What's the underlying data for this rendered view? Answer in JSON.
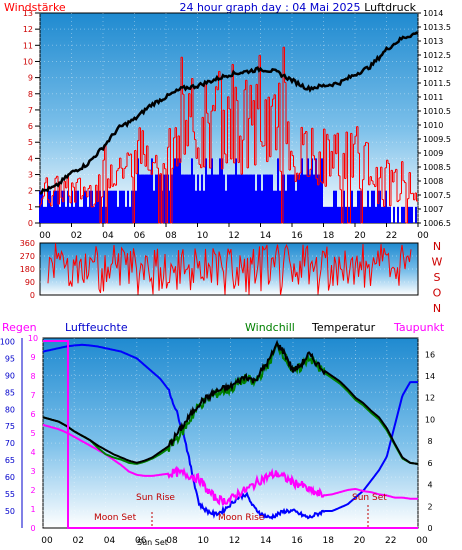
{
  "header": {
    "title": "24 hour graph day : 04 Mai 2025",
    "left_label": "Windstärke",
    "right_label": "Luftdruck"
  },
  "colors": {
    "wind": "#ff0000",
    "gust": "#0000ff",
    "pressure": "#000000",
    "direction": "#ff0000",
    "humidity": "#0000ff",
    "windchill": "#008000",
    "temperature": "#000000",
    "dewpoint": "#ff00ff",
    "rain_axis": "#0000ff",
    "astro": "#c00000"
  },
  "chart_data": [
    {
      "type": "line",
      "name": "wind-pressure",
      "x_ticks": [
        "00",
        "02",
        "04",
        "06",
        "08",
        "10",
        "12",
        "14",
        "16",
        "18",
        "20",
        "22",
        "00"
      ],
      "y_left_ticks": [
        "0",
        "1",
        "2",
        "3",
        "4",
        "5",
        "6",
        "7",
        "8",
        "9",
        "10",
        "11",
        "12",
        "13"
      ],
      "y_right_ticks": [
        "1006.5",
        "1007",
        "1007.5",
        "1008",
        "1008.5",
        "1009",
        "1009.5",
        "1010",
        "1010.5",
        "1011",
        "1011.5",
        "1012",
        "1012.5",
        "1013",
        "1013.5",
        "1014"
      ],
      "ylim_left": [
        0,
        13
      ],
      "ylim_right": [
        1006.5,
        1014
      ],
      "pressure_series": {
        "x": [
          0,
          1,
          2,
          3,
          4,
          5,
          6,
          7,
          8,
          9,
          10,
          11,
          12,
          13,
          14,
          15,
          16,
          17,
          18,
          19,
          20,
          21,
          22,
          23,
          24
        ],
        "values": [
          1007.6,
          1007.8,
          1008.3,
          1008.6,
          1009.2,
          1009.9,
          1010.2,
          1010.7,
          1011.0,
          1011.3,
          1011.4,
          1011.6,
          1011.8,
          1011.9,
          1012.0,
          1011.9,
          1011.6,
          1011.3,
          1011.4,
          1011.5,
          1011.8,
          1012.1,
          1012.7,
          1013.1,
          1013.3
        ]
      }
    },
    {
      "type": "scatter",
      "name": "wind-direction",
      "y_ticks": [
        "360",
        "270",
        "180",
        "90",
        "0"
      ],
      "direction_labels": [
        "N",
        "W",
        "S",
        "O",
        "N"
      ],
      "ylim": [
        0,
        360
      ]
    },
    {
      "type": "line",
      "name": "temperature-humidity",
      "legend": [
        "Regen",
        "Luftfeuchte",
        "Windchill",
        "Temperatur",
        "Taupunkt"
      ],
      "y_left_ticks": [
        "50",
        "55",
        "60",
        "65",
        "70",
        "75",
        "80",
        "85",
        "90",
        "95",
        "100"
      ],
      "y_right_ticks": [
        "0",
        "2",
        "4",
        "6",
        "8",
        "10",
        "12",
        "14",
        "16"
      ],
      "rain_ticks": [
        "0",
        "1",
        "2",
        "3",
        "4",
        "5",
        "6",
        "7",
        "8",
        "9",
        "10"
      ],
      "ylim_left": [
        45,
        101
      ],
      "ylim_right": [
        0,
        17.5
      ],
      "x": [
        0,
        0.5,
        1,
        1.5,
        2,
        2.5,
        3,
        3.5,
        4,
        4.5,
        5,
        5.5,
        6,
        6.5,
        7,
        7.5,
        8,
        8.5,
        9,
        9.5,
        10,
        10.5,
        11,
        11.5,
        12,
        12.5,
        13,
        13.5,
        14,
        14.5,
        15,
        15.5,
        16,
        16.5,
        17,
        17.5,
        18,
        18.5,
        19,
        19.5,
        20,
        20.5,
        21,
        21.5,
        22,
        22.5,
        23,
        23.5,
        24
      ],
      "series": [
        {
          "name": "Luftfeuchte",
          "values": [
            97,
            97.5,
            98,
            98.5,
            98.8,
            99,
            98.8,
            98.5,
            98,
            97.5,
            97,
            96,
            95,
            93,
            91,
            89,
            86,
            80,
            73,
            62,
            52,
            50,
            49,
            50,
            52,
            54,
            55,
            51,
            49,
            48,
            49,
            50,
            50,
            49,
            48,
            49,
            50,
            50,
            51,
            52,
            54,
            56,
            59,
            62,
            66,
            75,
            84,
            88,
            88
          ]
        },
        {
          "name": "Temperatur",
          "values": [
            10.2,
            10,
            9.8,
            9.4,
            8.9,
            8.5,
            8.1,
            7.6,
            7.2,
            6.8,
            6.5,
            6.2,
            6.0,
            6.2,
            6.5,
            7.0,
            7.5,
            8.5,
            9.5,
            10.5,
            11.5,
            12,
            12.5,
            12.8,
            13,
            13.5,
            14,
            13.5,
            14.5,
            15.5,
            17.0,
            16,
            14.5,
            15,
            16,
            15.2,
            14.5,
            14,
            13.5,
            12.8,
            12,
            11.5,
            10.8,
            10.2,
            9.2,
            7.8,
            6.5,
            6.0,
            5.9
          ]
        },
        {
          "name": "Windchill",
          "values": [
            10.2,
            10,
            9.8,
            9.4,
            8.9,
            8.5,
            8.1,
            7.4,
            6.8,
            6.5,
            6.3,
            6.0,
            5.9,
            6.1,
            6.4,
            6.8,
            7.3,
            8.2,
            9.0,
            10.2,
            11.3,
            11.8,
            12.3,
            12.6,
            12.8,
            13.3,
            13.8,
            13.3,
            14.3,
            15.3,
            16.8,
            15.8,
            14.3,
            14.8,
            15.8,
            15.0,
            14.3,
            13.8,
            13.3,
            12.6,
            11.8,
            11.3,
            10.6,
            10.0,
            9.0,
            7.7,
            6.4,
            6.0,
            5.9
          ]
        },
        {
          "name": "Taupunkt",
          "values": [
            9.5,
            9.3,
            9.1,
            8.8,
            8.4,
            8.0,
            7.6,
            7.2,
            6.8,
            6.3,
            5.8,
            5.2,
            4.9,
            4.8,
            4.8,
            4.9,
            5.0,
            5.1,
            5.0,
            4.8,
            4.5,
            3.5,
            2.8,
            2.5,
            2.6,
            3.2,
            3.5,
            4.0,
            4.5,
            4.8,
            5.0,
            4.6,
            4.2,
            4.0,
            3.5,
            3.2,
            3.0,
            3.1,
            3.3,
            3.5,
            3.6,
            3.4,
            3.3,
            3.1,
            3.0,
            2.8,
            2.8,
            2.7,
            2.7
          ]
        },
        {
          "name": "Regen",
          "values": [
            0,
            0,
            0,
            0,
            0,
            0,
            0,
            0,
            0,
            0,
            0,
            0,
            0,
            0,
            0,
            0,
            0,
            0,
            0,
            0,
            0,
            0,
            0,
            0,
            0,
            0,
            0,
            0,
            0,
            0,
            0,
            0,
            0,
            0,
            0,
            0,
            0,
            0,
            0,
            0,
            0,
            0,
            0,
            0,
            0,
            0,
            0,
            0,
            0
          ]
        }
      ],
      "annotations": {
        "moon_set": "Moon Set",
        "sun_rise": "Sun Rise",
        "sun_set_small": "Sun Set",
        "moon_rise": "Moon Rise",
        "moon_set2": "Moon Set",
        "sun_set": "Sun Set"
      }
    }
  ]
}
